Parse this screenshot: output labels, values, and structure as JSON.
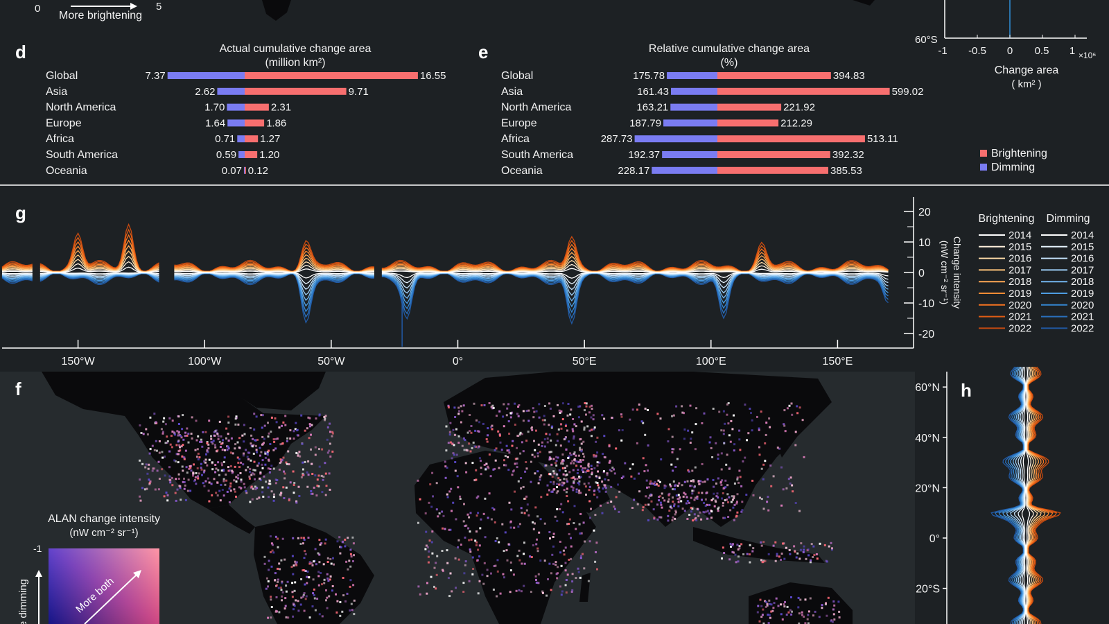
{
  "colors": {
    "background": "#1d2124",
    "brightening": "#f76f6f",
    "dimming": "#7a7cf2",
    "brightening_line": "#f07820",
    "dimming_line": "#2f8fd8",
    "ocean": "#262b2e",
    "land": "#0a0a0c"
  },
  "top_strip": {
    "scale_min": "0",
    "scale_max": "5",
    "arrow_label": "More brightening",
    "inset_lat_tick": "60°S",
    "inset_x_ticks": [
      "-1",
      "-0.5",
      "0",
      "0.5",
      "1"
    ],
    "inset_x_exponent": "×10⁶",
    "inset_x_label_1": "Change area",
    "inset_x_label_2": "( km² )"
  },
  "panel_d": {
    "letter": "d",
    "title_1": "Actual cumulative change area",
    "title_2": "(million km²)"
  },
  "panel_e": {
    "letter": "e",
    "title_1": "Relative cumulative change area",
    "title_2": "(%)"
  },
  "legend_de": {
    "brightening": "Brightening",
    "dimming": "Dimming"
  },
  "panel_g": {
    "letter": "g",
    "y_ticks": [
      "20",
      "10",
      "0",
      "-10",
      "-20"
    ],
    "y_label_1": "Change intensity",
    "y_label_2": "(nW cm⁻² sr⁻¹)",
    "x_ticks": [
      "150°W",
      "100°W",
      "50°W",
      "0°",
      "50°E",
      "100°E",
      "150°E"
    ],
    "legend_header_bright": "Brightening",
    "legend_header_dim": "Dimming",
    "years": [
      "2014",
      "2015",
      "2016",
      "2017",
      "2018",
      "2019",
      "2020",
      "2021",
      "2022"
    ]
  },
  "panel_f": {
    "letter": "f",
    "legend_title_1": "ALAN change intensity",
    "legend_title_2": "(nW cm⁻² sr⁻¹)",
    "legend_tick": "-1",
    "legend_diag_label": "More both",
    "legend_side_label": "More dimming"
  },
  "panel_h": {
    "letter": "h",
    "lat_ticks": [
      "60°N",
      "40°N",
      "20°N",
      "0°",
      "20°S"
    ]
  },
  "chart_data": [
    {
      "id": "d",
      "type": "bar",
      "title": "Actual cumulative change area (million km²)",
      "categories": [
        "Global",
        "Asia",
        "North America",
        "Europe",
        "Africa",
        "South America",
        "Oceania"
      ],
      "series": [
        {
          "name": "Dimming",
          "values": [
            7.37,
            2.62,
            1.7,
            1.64,
            0.71,
            0.59,
            0.07
          ]
        },
        {
          "name": "Brightening",
          "values": [
            16.55,
            9.71,
            2.31,
            1.86,
            1.27,
            1.2,
            0.12
          ]
        }
      ],
      "labels_dim": [
        "7.37",
        "2.62",
        "1.70",
        "1.64",
        "0.71",
        "0.59",
        "0.07"
      ],
      "labels_bright": [
        "16.55",
        "9.71",
        "2.31",
        "1.86",
        "1.27",
        "1.20",
        "0.12"
      ]
    },
    {
      "id": "e",
      "type": "bar",
      "title": "Relative cumulative change area (%)",
      "categories": [
        "Global",
        "Asia",
        "North America",
        "Europe",
        "Africa",
        "South America",
        "Oceania"
      ],
      "series": [
        {
          "name": "Dimming",
          "values": [
            175.78,
            161.43,
            163.21,
            187.79,
            287.73,
            192.37,
            228.17
          ]
        },
        {
          "name": "Brightening",
          "values": [
            394.83,
            599.02,
            221.92,
            212.29,
            513.11,
            392.32,
            385.53
          ]
        }
      ],
      "labels_dim": [
        "175.78",
        "161.43",
        "163.21",
        "187.79",
        "287.73",
        "192.37",
        "228.17"
      ],
      "labels_bright": [
        "394.83",
        "599.02",
        "221.92",
        "212.29",
        "513.11",
        "392.32",
        "385.53"
      ]
    },
    {
      "id": "g",
      "type": "line",
      "x_range": [
        -180,
        180
      ],
      "ylim": [
        -25,
        25
      ],
      "x_ticks": [
        -150,
        -100,
        -50,
        0,
        50,
        100,
        150
      ],
      "y_ticks": [
        20,
        10,
        0,
        -10,
        -20
      ],
      "peaks_brightening": [
        {
          "lon": -150,
          "value": 13
        },
        {
          "lon": -130,
          "value": 16
        },
        {
          "lon": -60,
          "value": 10
        },
        {
          "lon": 45,
          "value": 12
        },
        {
          "lon": 120,
          "value": 9
        }
      ],
      "troughs_dimming": [
        {
          "lon": -60,
          "value": -16
        },
        {
          "lon": -20,
          "value": -14
        },
        {
          "lon": 45,
          "value": -17
        },
        {
          "lon": 105,
          "value": -15
        },
        {
          "lon": 170,
          "value": -11
        }
      ]
    }
  ]
}
